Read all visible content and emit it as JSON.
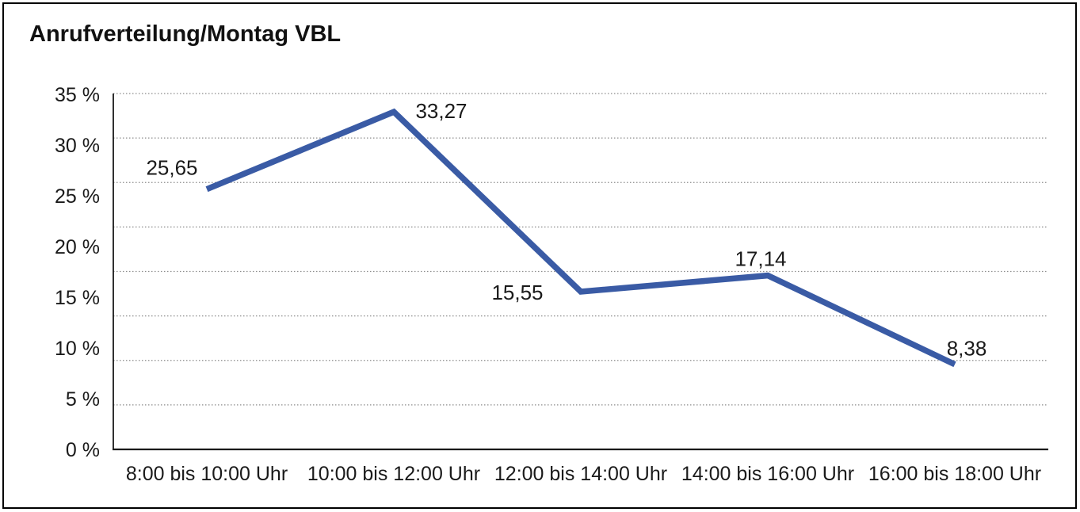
{
  "title": "Anrufverteilung/Montag VBL",
  "chart_data": {
    "type": "line",
    "title": "Anrufverteilung/Montag VBL",
    "categories": [
      "8:00 bis 10:00 Uhr",
      "10:00 bis 12:00 Uhr",
      "12:00 bis 14:00 Uhr",
      "14:00 bis 16:00 Uhr",
      "16:00 bis 18:00 Uhr"
    ],
    "values": [
      25.65,
      33.27,
      15.55,
      17.14,
      8.38
    ],
    "data_labels": [
      "25,65",
      "33,27",
      "15,55",
      "17,14",
      "8,38"
    ],
    "xlabel": "",
    "ylabel": "",
    "ylim": [
      0,
      35
    ],
    "y_tick_step": 5,
    "y_tick_labels_top_to_bottom": [
      "35 %",
      "30 %",
      "25 %",
      "20 %",
      "15 %",
      "10 %",
      "5 %",
      "0 %"
    ],
    "grid": "horizontal dotted, 8 divisions",
    "legend_position": "none",
    "line_color": "#3A5BA5",
    "axis_color": "#1a1a1a",
    "gridline_color": "#8C8C8C",
    "text_color": "#1a1a1a",
    "background_color": "#ffffff"
  }
}
